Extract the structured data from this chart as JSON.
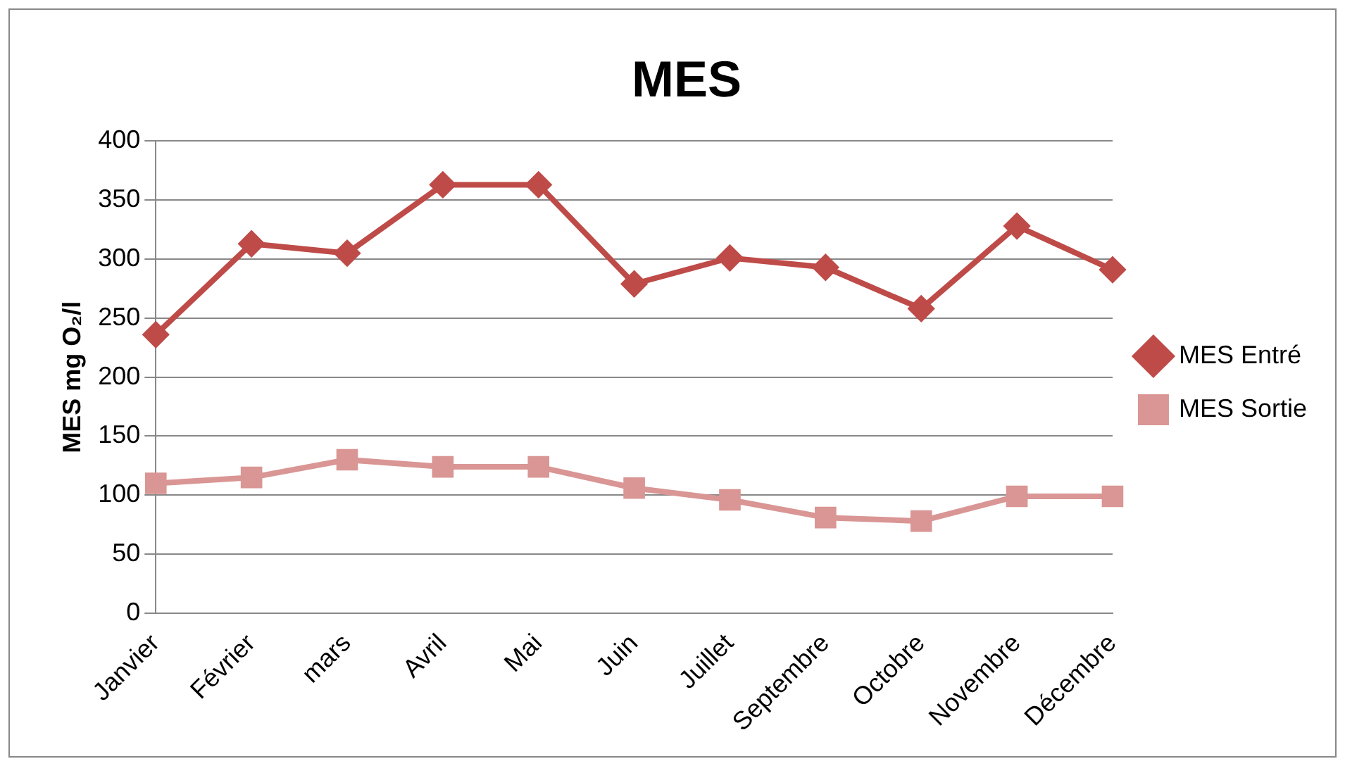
{
  "chart_data": {
    "type": "line",
    "title": "MES",
    "ylabel": "MES mg O₂/l",
    "categories": [
      "Janvier",
      "Février",
      "mars",
      "Avril",
      "Mai",
      "Juin",
      "Juillet",
      "Septembre",
      "Octobre",
      "Novembre",
      "Décembre"
    ],
    "series": [
      {
        "name": "MES Entré",
        "color": "#be4b48",
        "marker": "diamond",
        "values": [
          236,
          313,
          305,
          363,
          363,
          279,
          301,
          293,
          258,
          328,
          291
        ]
      },
      {
        "name": "MES Sortie",
        "color": "#d99694",
        "marker": "square",
        "values": [
          110,
          115,
          130,
          124,
          124,
          106,
          96,
          81,
          78,
          99,
          99
        ]
      }
    ],
    "ylim": [
      0,
      400
    ],
    "yticks": [
      0,
      50,
      100,
      150,
      200,
      250,
      300,
      350,
      400
    ],
    "grid": "y",
    "legend": "right",
    "line_style": "solid"
  }
}
